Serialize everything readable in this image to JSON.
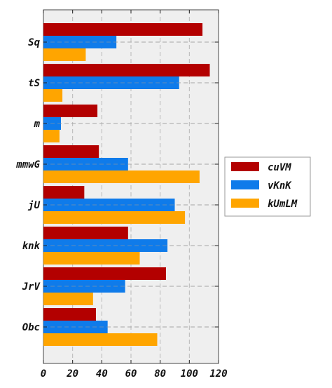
{
  "chart_data": {
    "type": "bar",
    "orientation": "horizontal",
    "categories": [
      "Sq",
      "tS",
      "m",
      "mmwG",
      "jU",
      "knk",
      "JrV",
      "Obc"
    ],
    "series": [
      {
        "name": "cuVM",
        "color": "#b30000",
        "values": [
          109,
          114,
          37,
          38,
          28,
          58,
          84,
          36
        ]
      },
      {
        "name": "vKnK",
        "color": "#0f7bea",
        "values": [
          50,
          93,
          12,
          58,
          90,
          85,
          56,
          44
        ]
      },
      {
        "name": "kUmLM",
        "color": "#ffa500",
        "values": [
          29,
          13,
          11,
          107,
          97,
          66,
          34,
          78
        ]
      }
    ],
    "xlim": [
      0,
      120
    ],
    "xticks": [
      0,
      20,
      40,
      60,
      80,
      100,
      120
    ],
    "title": "",
    "xlabel": "",
    "ylabel": "",
    "grid": true,
    "legend_position": "center-right outside"
  }
}
